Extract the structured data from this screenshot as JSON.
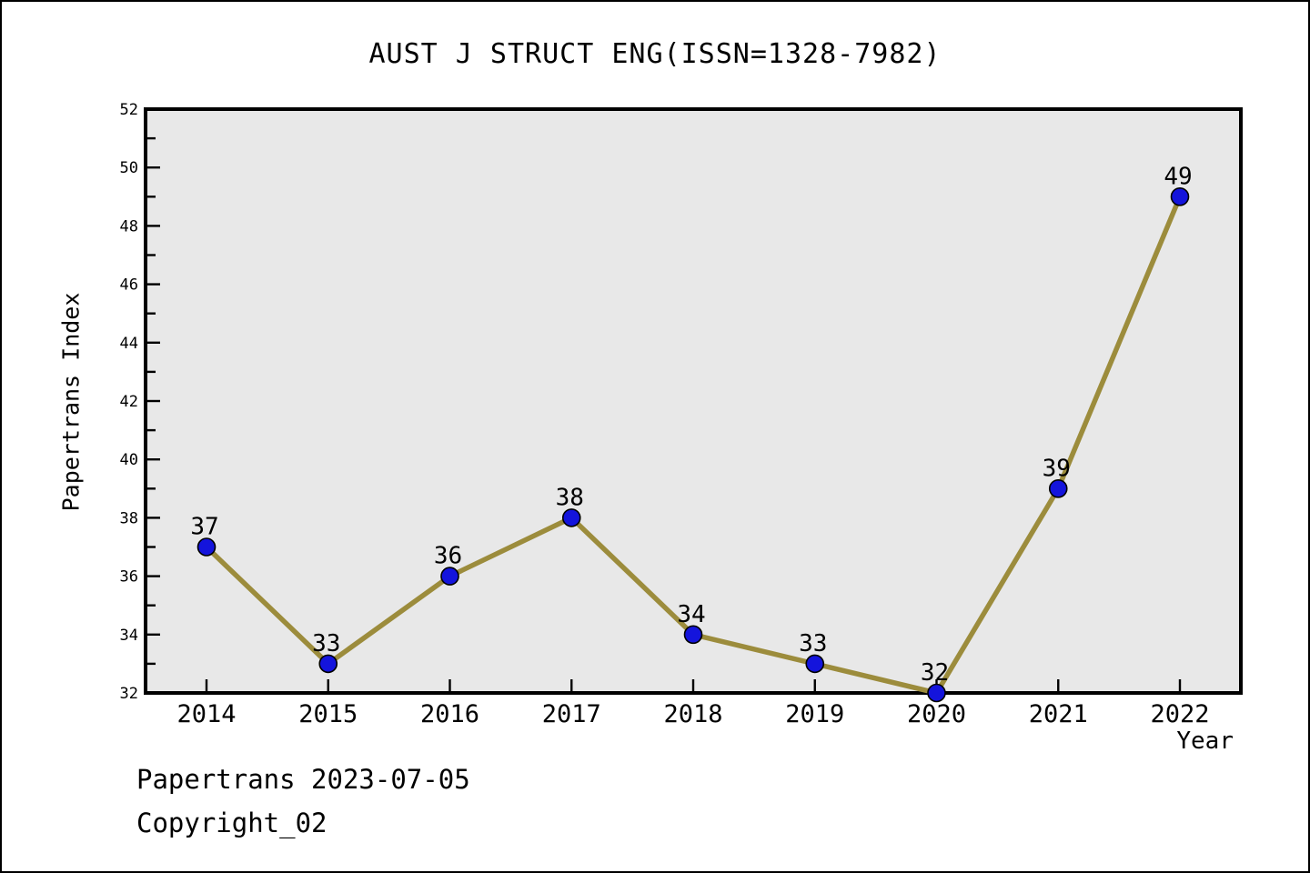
{
  "title": "AUST J STRUCT ENG(ISSN=1328-7982)",
  "footer": {
    "line1": "Papertrans 2023-07-05",
    "line2": "Copyright_02"
  },
  "chart_data": {
    "type": "line",
    "title": "AUST J STRUCT ENG(ISSN=1328-7982)",
    "xlabel": "Year",
    "ylabel": "Papertrans Index",
    "categories": [
      "2014",
      "2015",
      "2016",
      "2017",
      "2018",
      "2019",
      "2020",
      "2021",
      "2022"
    ],
    "values": [
      37,
      33,
      36,
      38,
      34,
      33,
      32,
      39,
      49
    ],
    "ylim": [
      32,
      52
    ],
    "ytick_major_step": 2,
    "ytick_minor_step": 1,
    "grid": false,
    "legend": "none",
    "point_labels_shown": true,
    "colors": {
      "line": "#9C8C3C",
      "marker_fill": "#1414DC",
      "marker_edge": "#000000",
      "plot_background": "#E8E8E8",
      "axis": "#000000",
      "text": "#000000",
      "page_background": "#FFFFFF"
    }
  }
}
